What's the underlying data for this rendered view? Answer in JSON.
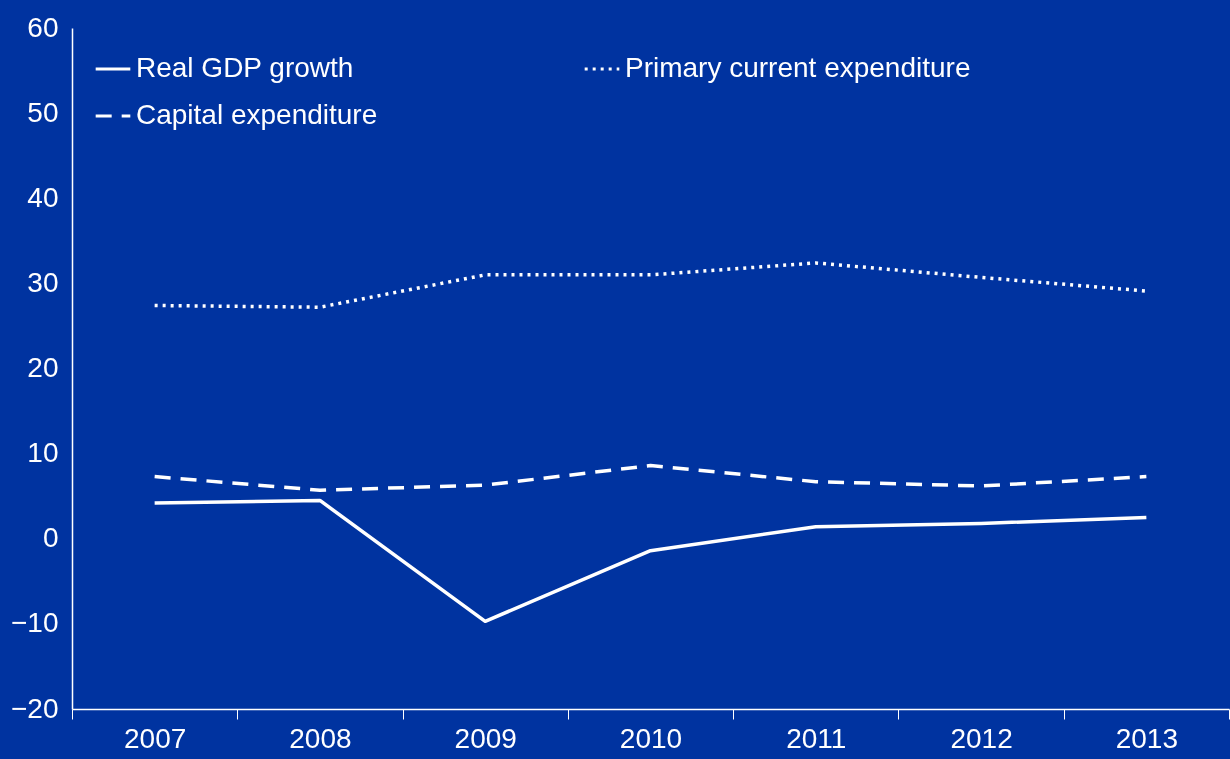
{
  "chart_data": {
    "type": "line",
    "categories": [
      "2007",
      "2008",
      "2009",
      "2010",
      "2011",
      "2012",
      "2013"
    ],
    "series": [
      {
        "name": "Real GDP growth",
        "color": "#ffffff",
        "line_style": "solid",
        "values": [
          4.2,
          4.5,
          -9.7,
          -1.4,
          1.4,
          1.8,
          2.5
        ]
      },
      {
        "name": "Capital expenditure",
        "color": "#ffffff",
        "line_style": "dashed",
        "values": [
          7.3,
          5.7,
          6.3,
          8.6,
          6.7,
          6.2,
          7.3
        ]
      },
      {
        "name": "Primary current expenditure",
        "color": "#ffffff",
        "line_style": "dotted",
        "values": [
          27.4,
          27.2,
          31.0,
          31.0,
          32.4,
          30.7,
          29.1
        ]
      }
    ],
    "ylim": [
      -20,
      60
    ],
    "yticks": [
      -20,
      -10,
      0,
      10,
      20,
      30,
      40,
      50,
      60
    ],
    "grid": false,
    "legend": "top left",
    "marker": "none"
  }
}
